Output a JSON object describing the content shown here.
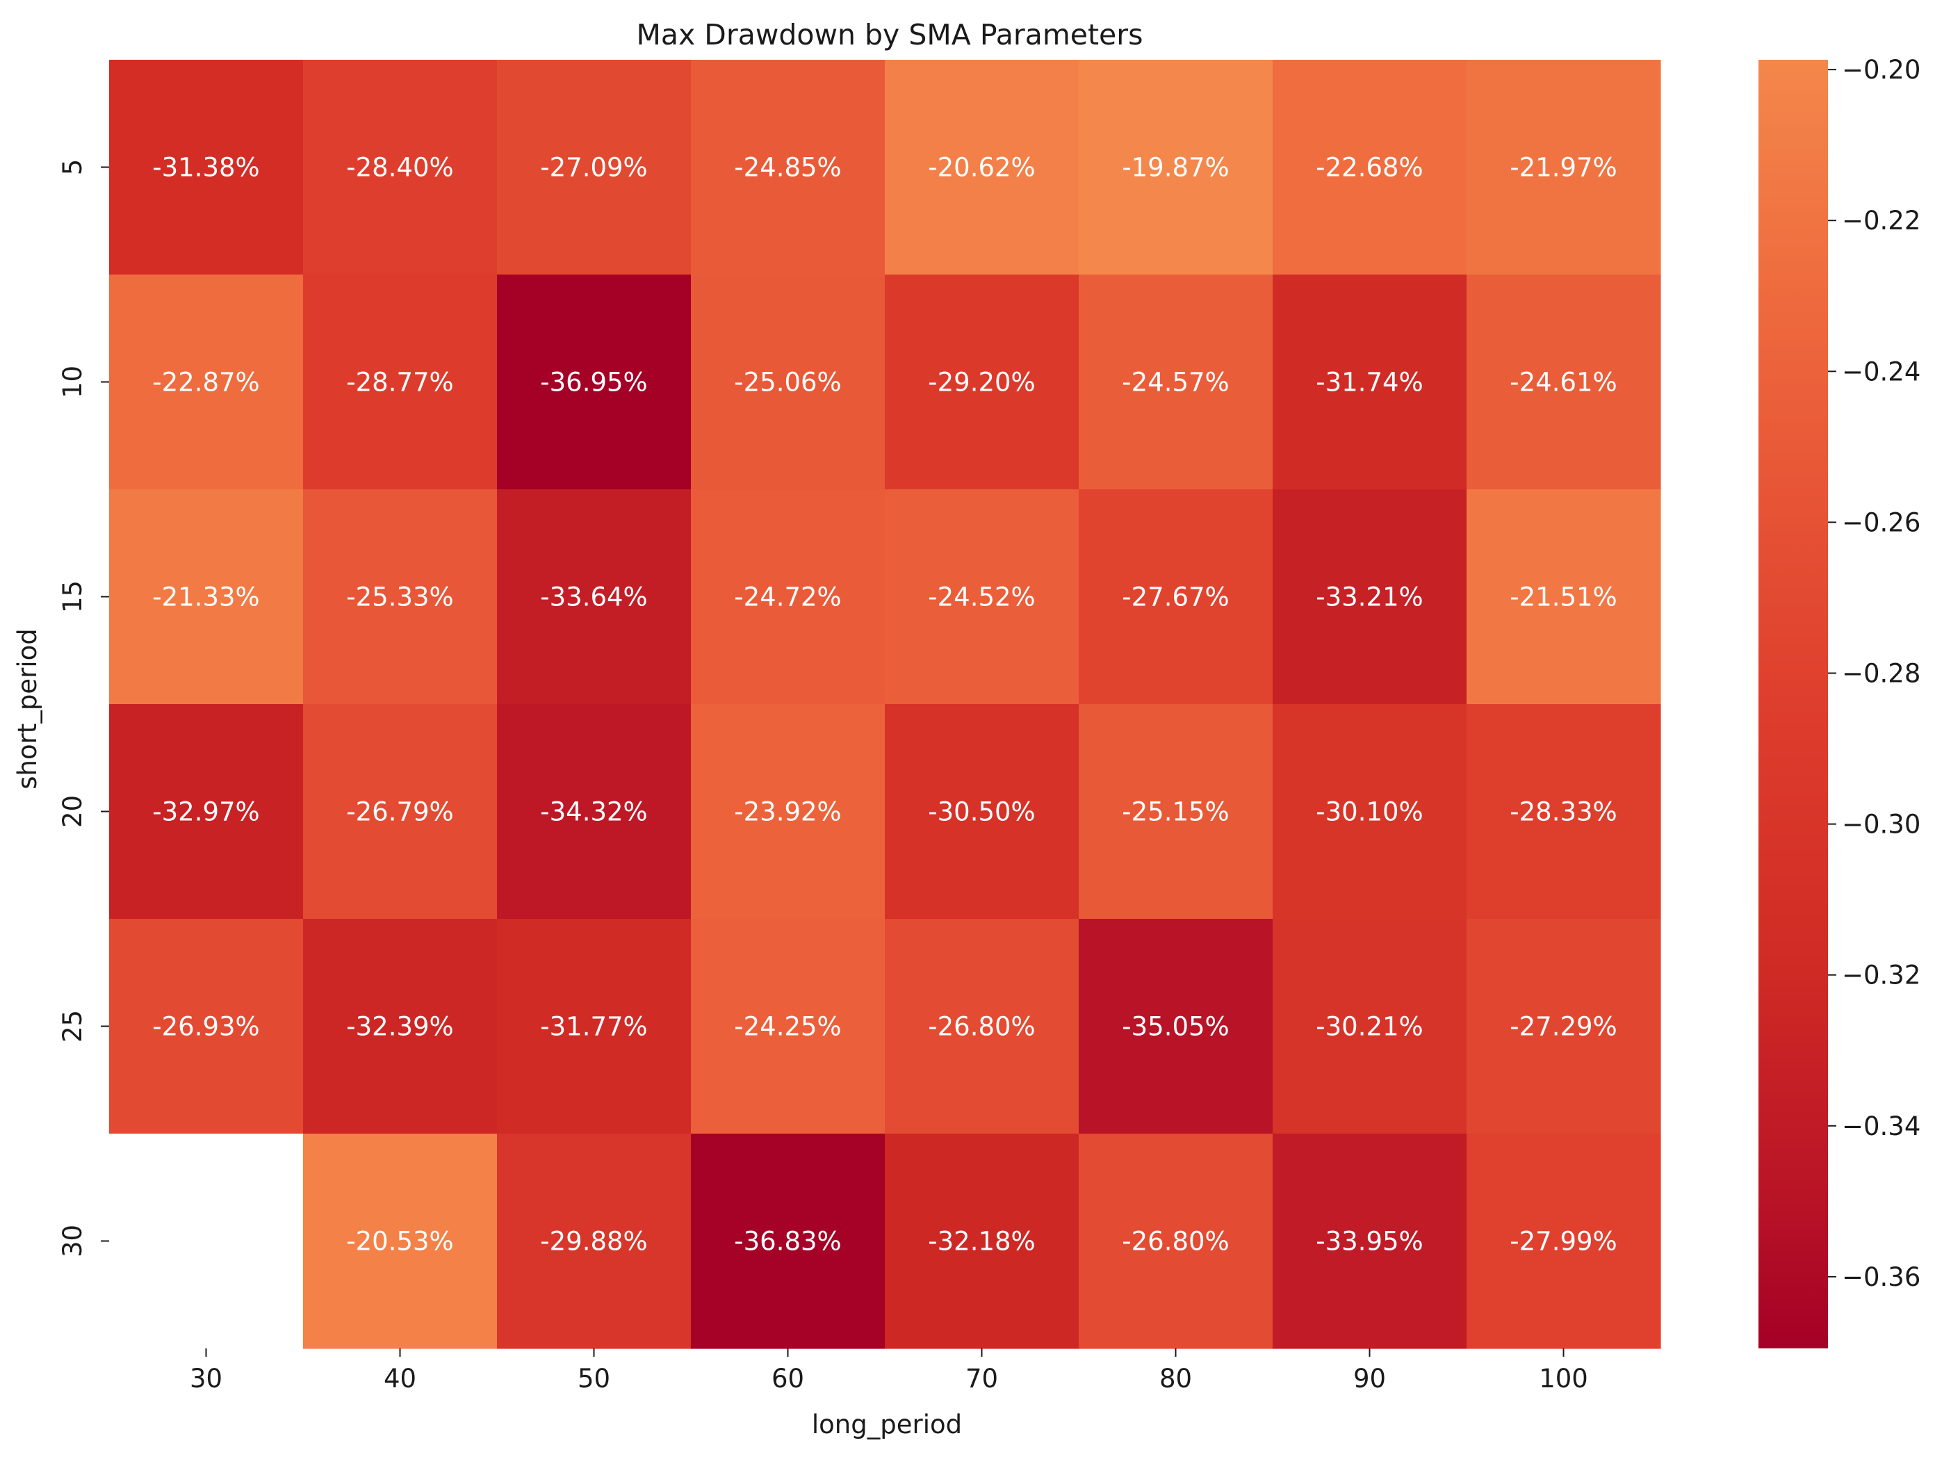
{
  "chart_data": {
    "type": "heatmap",
    "title": "Max Drawdown by SMA Parameters",
    "xlabel": "long_period",
    "ylabel": "short_period",
    "x": [
      "30",
      "40",
      "50",
      "60",
      "70",
      "80",
      "90",
      "100"
    ],
    "y": [
      "5",
      "10",
      "15",
      "20",
      "25",
      "30"
    ],
    "values": [
      [
        -0.3138,
        -0.284,
        -0.2709,
        -0.2485,
        -0.2062,
        -0.1987,
        -0.2268,
        -0.2197
      ],
      [
        -0.2287,
        -0.2877,
        -0.3695,
        -0.2506,
        -0.292,
        -0.2457,
        -0.3174,
        -0.2461
      ],
      [
        -0.2133,
        -0.2533,
        -0.3364,
        -0.2472,
        -0.2452,
        -0.2767,
        -0.3321,
        -0.2151
      ],
      [
        -0.3297,
        -0.2679,
        -0.3432,
        -0.2392,
        -0.305,
        -0.2515,
        -0.301,
        -0.2833
      ],
      [
        -0.2693,
        -0.3239,
        -0.3177,
        -0.2425,
        -0.268,
        -0.3505,
        -0.3021,
        -0.2729
      ],
      [
        null,
        -0.2053,
        -0.2988,
        -0.3683,
        -0.3218,
        -0.268,
        -0.3395,
        -0.2799
      ]
    ],
    "annotations": [
      [
        "-31.38%",
        "-28.40%",
        "-27.09%",
        "-24.85%",
        "-20.62%",
        "-19.87%",
        "-22.68%",
        "-21.97%"
      ],
      [
        "-22.87%",
        "-28.77%",
        "-36.95%",
        "-25.06%",
        "-29.20%",
        "-24.57%",
        "-31.74%",
        "-24.61%"
      ],
      [
        "-21.33%",
        "-25.33%",
        "-33.64%",
        "-24.72%",
        "-24.52%",
        "-27.67%",
        "-33.21%",
        "-21.51%"
      ],
      [
        "-32.97%",
        "-26.79%",
        "-34.32%",
        "-23.92%",
        "-30.50%",
        "-25.15%",
        "-30.10%",
        "-28.33%"
      ],
      [
        "-26.93%",
        "-32.39%",
        "-31.77%",
        "-24.25%",
        "-26.80%",
        "-35.05%",
        "-30.21%",
        "-27.29%"
      ],
      [
        "",
        "-20.53%",
        "-29.88%",
        "-36.83%",
        "-32.18%",
        "-26.80%",
        "-33.95%",
        "-27.99%"
      ]
    ],
    "colorbar": {
      "range": [
        -0.3695,
        -0.1987
      ],
      "ticks": [
        -0.2,
        -0.22,
        -0.24,
        -0.26,
        -0.28,
        -0.3,
        -0.32,
        -0.34,
        -0.36
      ],
      "tick_labels": [
        "−0.20",
        "−0.22",
        "−0.24",
        "−0.26",
        "−0.28",
        "−0.30",
        "−0.32",
        "−0.34",
        "−0.36"
      ],
      "colormap": "Reds-to-orange (YlOrRd-like)",
      "color_low": "#a50026",
      "color_high": "#f4874b"
    },
    "annotation_color": "#ffffff",
    "missing_cell_color": "#ffffff"
  }
}
